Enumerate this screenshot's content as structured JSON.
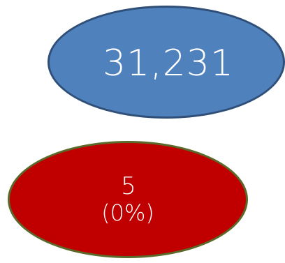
{
  "diagram": {
    "total": {
      "value": "31,231",
      "fill_color": "#4f81bd",
      "border_color": "#2f4f78"
    },
    "subset": {
      "value": "5",
      "percent": "(0%)",
      "fill_color": "#c00000",
      "border_color": "#5a6a2a"
    }
  }
}
